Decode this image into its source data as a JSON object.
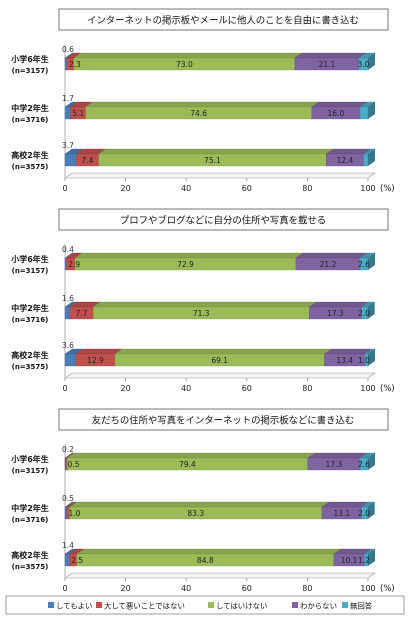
{
  "chart_data": [
    {
      "type": "bar",
      "stacked": true,
      "orientation": "horizontal",
      "title": "インターネットの掲示板やメールに他人のことを自由に書き込む",
      "categories": [
        {
          "grade": "小学6年生",
          "n": "(n=3157)"
        },
        {
          "grade": "中学2年生",
          "n": "(n=3716)"
        },
        {
          "grade": "高校2年生",
          "n": "(n=3575)"
        }
      ],
      "series": [
        {
          "name": "してもよい",
          "values": [
            0.6,
            1.7,
            3.7
          ]
        },
        {
          "name": "大して悪いことではない",
          "values": [
            2.3,
            5.1,
            7.4
          ]
        },
        {
          "name": "してはいけない",
          "values": [
            73.0,
            74.6,
            75.1
          ]
        },
        {
          "name": "わからない",
          "values": [
            21.1,
            16.0,
            12.4
          ]
        },
        {
          "name": "無回答",
          "values": [
            3.0,
            2.6,
            1.4
          ]
        }
      ],
      "labels": [
        [
          "0.6",
          "2.3",
          "73.0",
          "21.1",
          "3.0"
        ],
        [
          "1.7",
          "5.1",
          "74.6",
          "16.0",
          ""
        ],
        [
          "3.7",
          "7.4",
          "75.1",
          "12.4",
          ""
        ]
      ],
      "xlim": [
        0,
        100
      ],
      "xticks": [
        "0",
        "20",
        "40",
        "60",
        "80",
        "100"
      ],
      "unit": "(%)"
    },
    {
      "type": "bar",
      "stacked": true,
      "orientation": "horizontal",
      "title": "プロフやブログなどに自分の住所や写真を載せる",
      "categories": [
        {
          "grade": "小学6年生",
          "n": "(n=3157)"
        },
        {
          "grade": "中学2年生",
          "n": "(n=3716)"
        },
        {
          "grade": "高校2年生",
          "n": "(n=3575)"
        }
      ],
      "series": [
        {
          "name": "してもよい",
          "values": [
            0.4,
            1.6,
            3.6
          ]
        },
        {
          "name": "大して悪いことではない",
          "values": [
            2.9,
            7.7,
            12.9
          ]
        },
        {
          "name": "してはいけない",
          "values": [
            72.9,
            71.3,
            69.1
          ]
        },
        {
          "name": "わからない",
          "values": [
            21.2,
            17.3,
            13.4
          ]
        },
        {
          "name": "無回答",
          "values": [
            2.6,
            2.0,
            1.0
          ]
        }
      ],
      "labels": [
        [
          "0.4",
          "2.9",
          "72.9",
          "21.2",
          "2.6"
        ],
        [
          "1.6",
          "7.7",
          "71.3",
          "17.3",
          "2.0"
        ],
        [
          "3.6",
          "12.9",
          "69.1",
          "13.4",
          "1.0"
        ]
      ],
      "xlim": [
        0,
        100
      ],
      "xticks": [
        "0",
        "20",
        "40",
        "60",
        "80",
        "100"
      ],
      "unit": "(%)"
    },
    {
      "type": "bar",
      "stacked": true,
      "orientation": "horizontal",
      "title": "友だちの住所や写真をインターネットの掲示板などに書き込む",
      "categories": [
        {
          "grade": "小学6年生",
          "n": "(n=3157)"
        },
        {
          "grade": "中学2年生",
          "n": "(n=3716)"
        },
        {
          "grade": "高校2年生",
          "n": "(n=3575)"
        }
      ],
      "series": [
        {
          "name": "してもよい",
          "values": [
            0.2,
            0.5,
            1.4
          ]
        },
        {
          "name": "大して悪いことではない",
          "values": [
            0.5,
            1.0,
            2.5
          ]
        },
        {
          "name": "してはいけない",
          "values": [
            79.4,
            83.3,
            84.8
          ]
        },
        {
          "name": "わからない",
          "values": [
            17.3,
            13.1,
            10.1
          ]
        },
        {
          "name": "無回答",
          "values": [
            2.6,
            2.0,
            1.2
          ]
        }
      ],
      "labels": [
        [
          "0.2",
          "0.5",
          "79.4",
          "17.3",
          "2.6"
        ],
        [
          "0.5",
          "1.0",
          "83.3",
          "13.1",
          "2.0"
        ],
        [
          "1.4",
          "2.5",
          "84.8",
          "10.1",
          "1.2"
        ]
      ],
      "xlim": [
        0,
        100
      ],
      "xticks": [
        "0",
        "20",
        "40",
        "60",
        "80",
        "100"
      ],
      "unit": "(%)"
    }
  ],
  "legend": {
    "items": [
      "してもよい",
      "大して悪いことではない",
      "してはいけない",
      "わからない",
      "無回答"
    ]
  },
  "colors": {
    "してもよい": "#4a7ebb",
    "大して悪いことではない": "#c0504d",
    "してはいけない": "#9bbb59",
    "わからない": "#8064a2",
    "無回答": "#4bacc6"
  }
}
